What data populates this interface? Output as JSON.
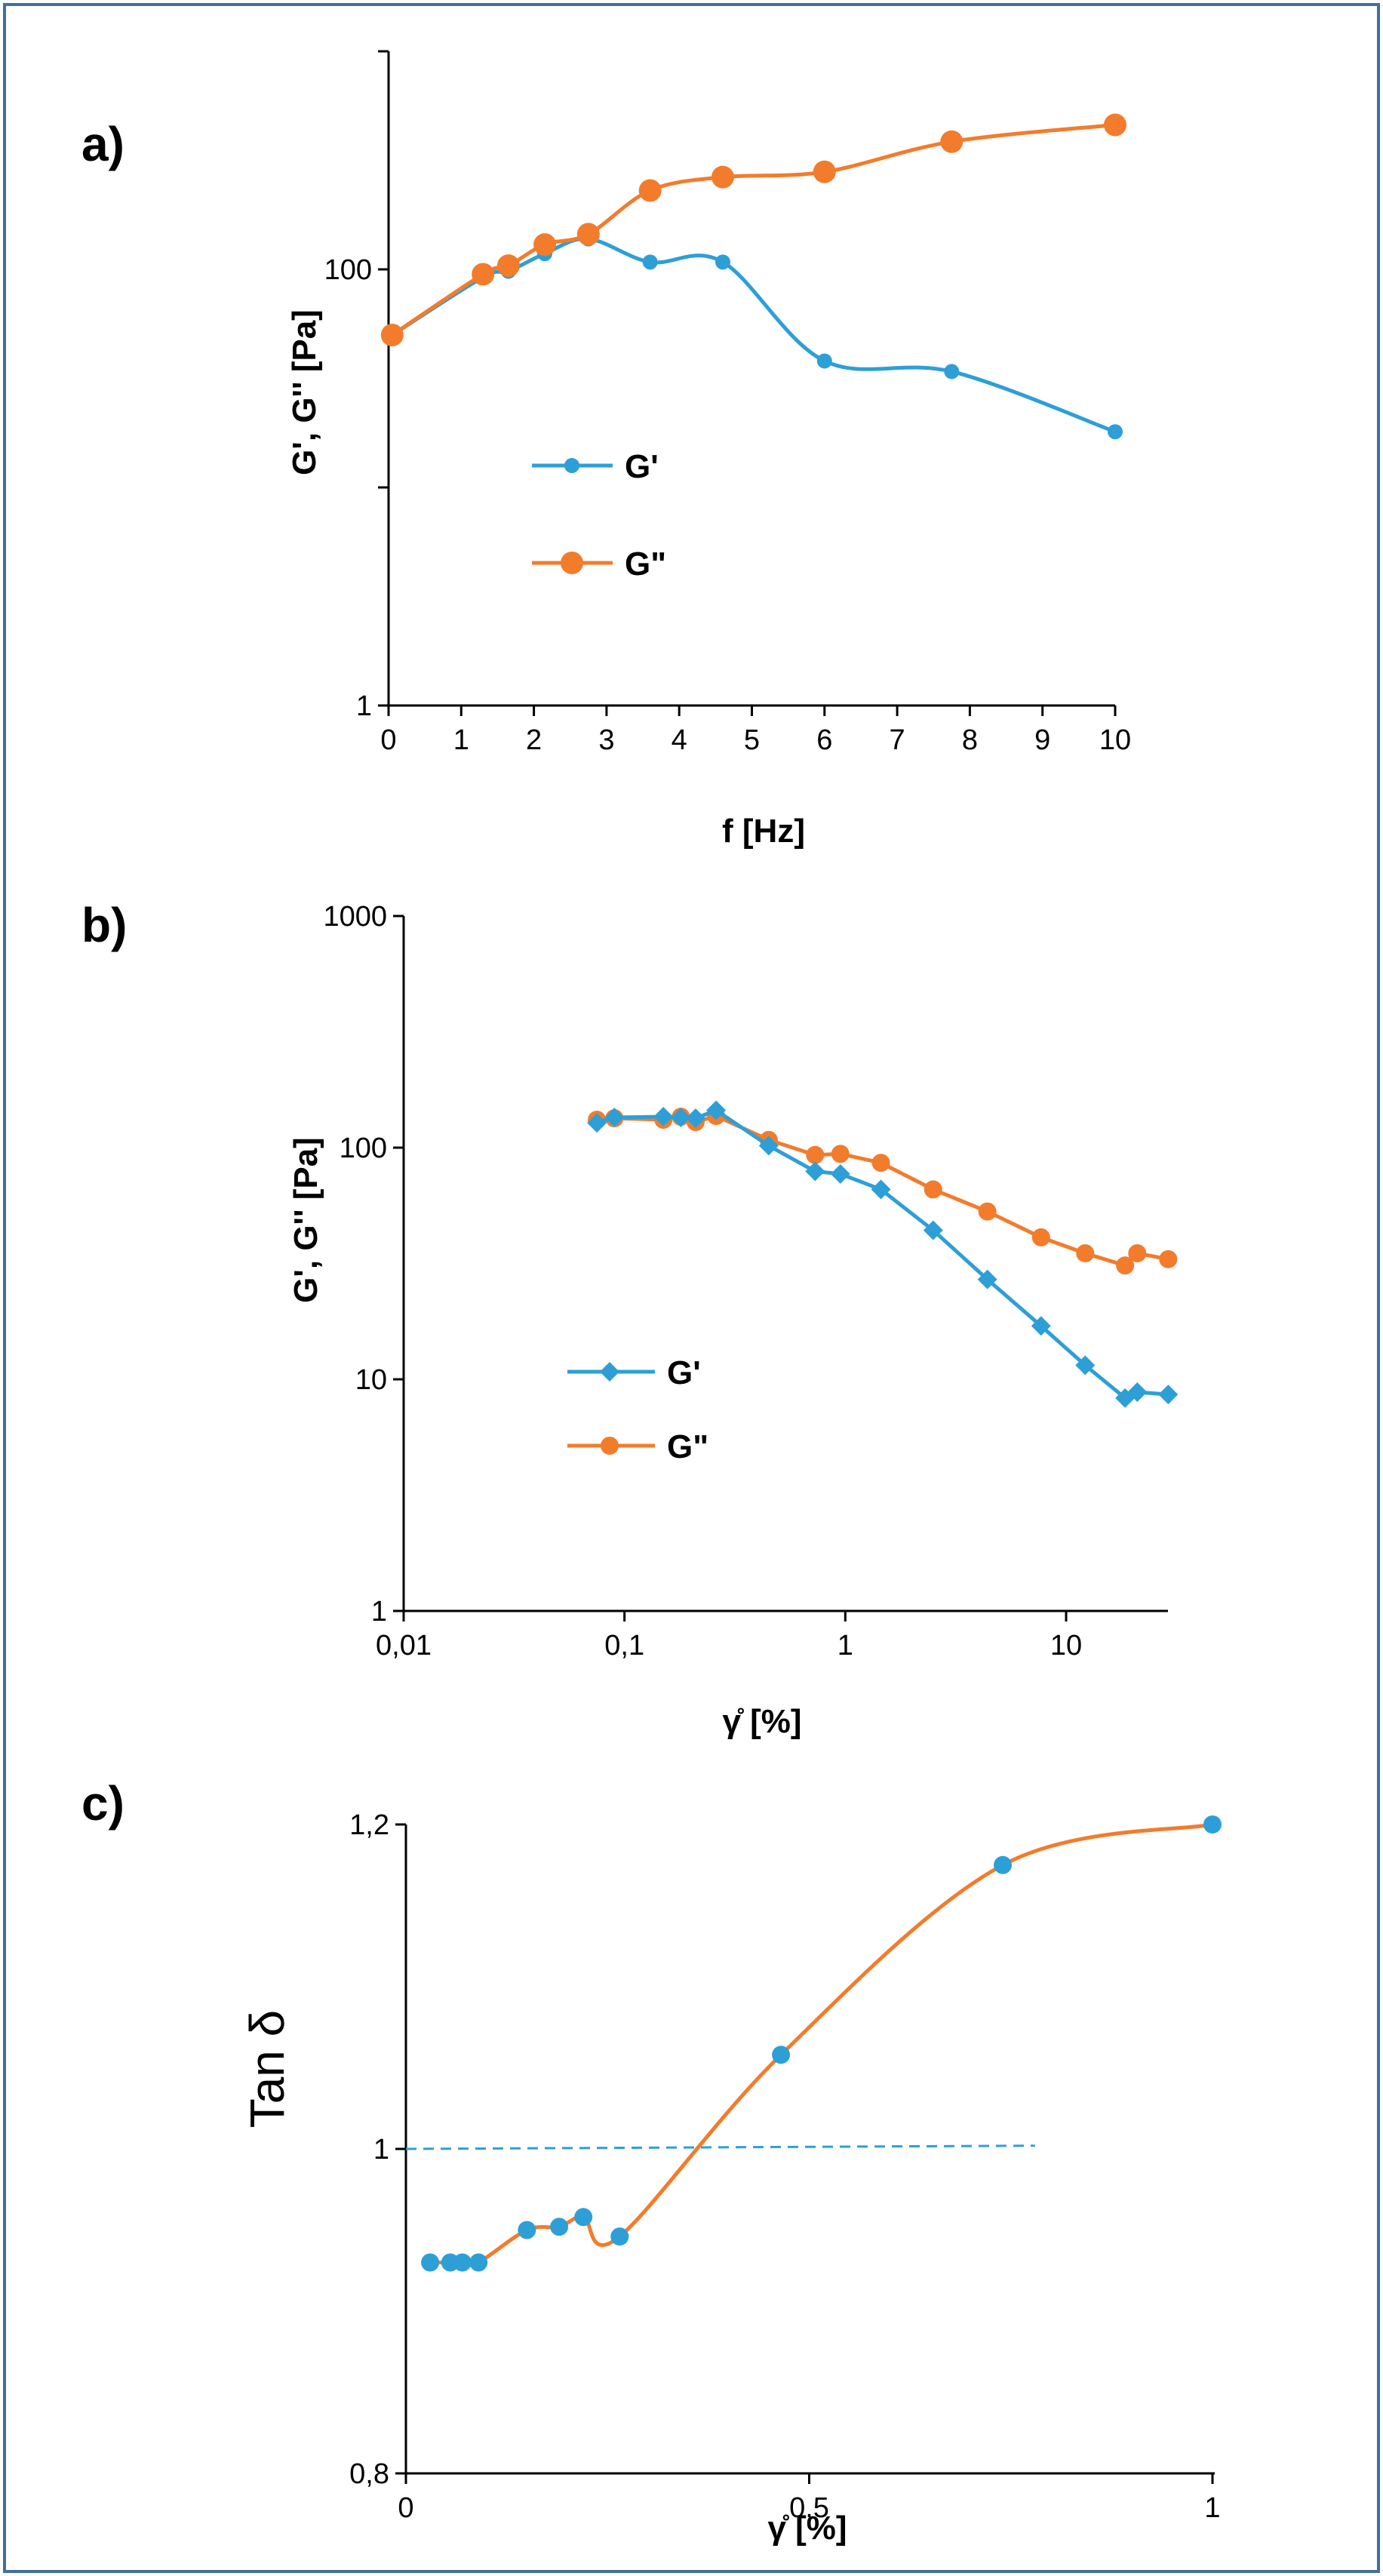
{
  "colors": {
    "g_prime": "#2e9fd6",
    "g_double": "#f27c2c",
    "frame": "#41719c"
  },
  "chart_data": [
    {
      "panel": "a)",
      "type": "line",
      "xlabel": "f [Hz]",
      "ylabel": "G', G'' [Pa]",
      "x_scale": "linear",
      "y_scale": "log",
      "xlim": [
        0,
        10
      ],
      "ylim": [
        1,
        1000
      ],
      "x_ticks": [
        0,
        1,
        2,
        3,
        4,
        5,
        6,
        7,
        8,
        9,
        10
      ],
      "x_tick_labels": [
        "0",
        "1",
        "2",
        "3",
        "4",
        "5",
        "6",
        "7",
        "8",
        "9",
        "10"
      ],
      "y_ticks": [
        1,
        100
      ],
      "y_tick_labels": [
        "1",
        "100"
      ],
      "legend_position": "center-left",
      "series": [
        {
          "name": "G'",
          "marker": "circle-small",
          "color_key": "g_prime",
          "x": [
            0.05,
            1.3,
            1.65,
            2.15,
            2.75,
            3.6,
            4.6,
            6.0,
            7.75,
            10.0
          ],
          "y": [
            50,
            92,
            98,
            118,
            138,
            108,
            108,
            38,
            34,
            18
          ]
        },
        {
          "name": "G\"",
          "marker": "circle-large",
          "color_key": "g_double",
          "x": [
            0.05,
            1.3,
            1.65,
            2.15,
            2.75,
            3.6,
            4.6,
            6.0,
            7.75,
            10.0
          ],
          "y": [
            50,
            95,
            104,
            130,
            145,
            230,
            265,
            280,
            385,
            460
          ]
        }
      ]
    },
    {
      "panel": "b)",
      "type": "line",
      "xlabel": "γ̊ [%]",
      "ylabel": "G', G'' [Pa]",
      "x_scale": "log",
      "y_scale": "log",
      "xlim": [
        0.01,
        30
      ],
      "ylim": [
        1,
        1000
      ],
      "x_ticks": [
        0.01,
        0.1,
        1,
        10
      ],
      "x_tick_labels": [
        "0,01",
        "0,1",
        "1",
        "10"
      ],
      "y_ticks": [
        1,
        10,
        100,
        1000
      ],
      "y_tick_labels": [
        "1",
        "10",
        "100",
        "1000"
      ],
      "legend_position": "lower-left",
      "series": [
        {
          "name": "G'",
          "marker": "diamond",
          "color_key": "g_prime",
          "x": [
            0.075,
            0.09,
            0.15,
            0.18,
            0.21,
            0.26,
            0.45,
            0.73,
            0.95,
            1.45,
            2.5,
            4.4,
            7.7,
            12.2,
            18.5,
            21,
            29
          ],
          "y": [
            128,
            135,
            136,
            135,
            134,
            145,
            102,
            79,
            77,
            66,
            44,
            27,
            17,
            11.5,
            8.3,
            8.8,
            8.6
          ]
        },
        {
          "name": "G\"",
          "marker": "circle",
          "color_key": "g_double",
          "x": [
            0.075,
            0.09,
            0.15,
            0.18,
            0.21,
            0.26,
            0.45,
            0.73,
            0.95,
            1.45,
            2.5,
            4.4,
            7.7,
            12.2,
            18.5,
            21,
            29
          ],
          "y": [
            132,
            134,
            132,
            136,
            129,
            137,
            108,
            93,
            94,
            86,
            66,
            53,
            41,
            35,
            31,
            35,
            33
          ]
        }
      ]
    },
    {
      "panel": "c)",
      "type": "scatter",
      "xlabel": "γ̊ [%]",
      "ylabel": "Tan δ",
      "x_scale": "linear",
      "y_scale": "linear",
      "xlim": [
        0,
        1
      ],
      "ylim": [
        0.8,
        1.2
      ],
      "x_ticks": [
        0,
        0.5,
        1
      ],
      "x_tick_labels": [
        "0",
        "0,5",
        "1"
      ],
      "y_ticks": [
        0.8,
        1.0,
        1.2
      ],
      "y_tick_labels": [
        "0,8",
        "1",
        "1,2"
      ],
      "reference_line": {
        "y": [
          1.0,
          1.002
        ],
        "x": [
          0.0,
          0.78
        ],
        "style": "dashed"
      },
      "series": [
        {
          "name": "Tan δ",
          "color_key": "g_prime",
          "line_color_key": "g_double",
          "x": [
            0.03,
            0.055,
            0.07,
            0.09,
            0.15,
            0.19,
            0.22,
            0.265,
            0.465,
            0.74,
            1.0
          ],
          "y": [
            0.93,
            0.93,
            0.93,
            0.93,
            0.95,
            0.952,
            0.958,
            0.946,
            1.058,
            1.175,
            1.2
          ]
        }
      ]
    }
  ]
}
